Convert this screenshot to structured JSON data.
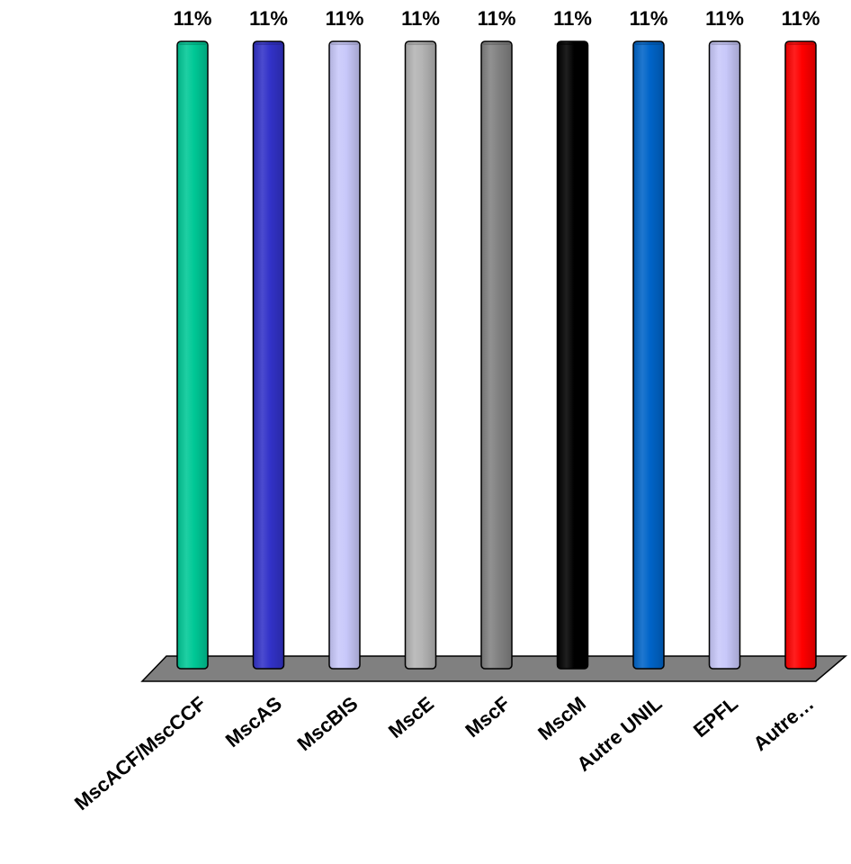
{
  "chart_data": {
    "type": "bar",
    "style": "3d-cylinder",
    "categories": [
      "MscACF/MscCCF",
      "MscAS",
      "MscBIS",
      "MscE",
      "MscF",
      "MscM",
      "Autre UNIL",
      "EPFL",
      "Autre…"
    ],
    "values": [
      11,
      11,
      11,
      11,
      11,
      11,
      11,
      11,
      11
    ],
    "value_labels": [
      "11%",
      "11%",
      "11%",
      "11%",
      "11%",
      "11%",
      "11%",
      "11%",
      "11%"
    ],
    "unit": "%",
    "ylim": [
      0,
      11
    ],
    "grid": false,
    "legend": "none",
    "bar_colors": [
      "#00c896",
      "#3232c8",
      "#c8c8fa",
      "#b4b4b4",
      "#828282",
      "#000000",
      "#0064c8",
      "#c8c8fa",
      "#ff0000"
    ],
    "floor_color": "#808080"
  }
}
